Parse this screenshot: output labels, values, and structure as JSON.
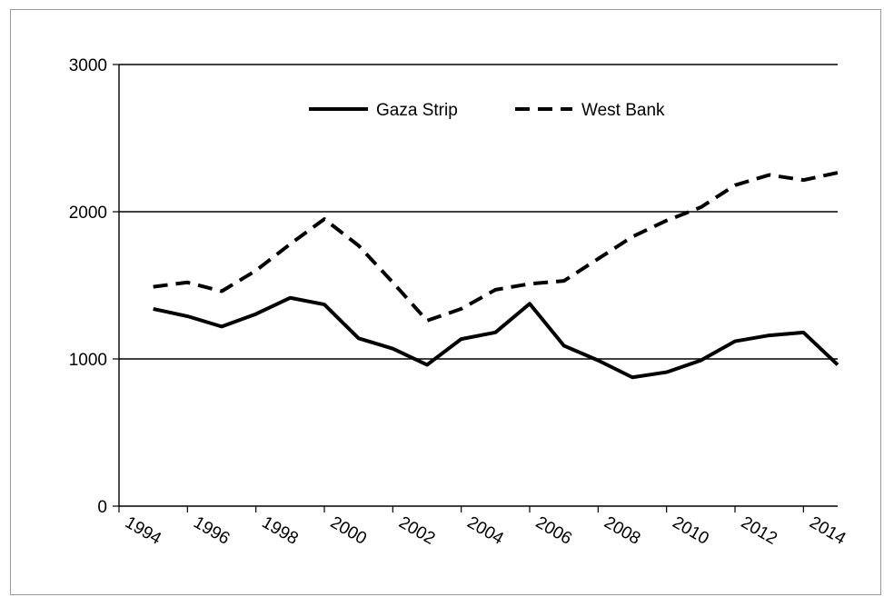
{
  "chart_data": {
    "type": "line",
    "title": "",
    "xlabel": "",
    "ylabel": "",
    "ylim": [
      0,
      3000
    ],
    "yticks": [
      "0",
      "1000",
      "2000",
      "3000"
    ],
    "xticks": [
      "1994",
      "1996",
      "1998",
      "2000",
      "2002",
      "2004",
      "2006",
      "2008",
      "2010",
      "2012",
      "2014"
    ],
    "grid": "horizontal",
    "legend_position": "top-center",
    "x": [
      1994,
      1995,
      1996,
      1997,
      1998,
      1999,
      2000,
      2001,
      2002,
      2003,
      2004,
      2005,
      2006,
      2007,
      2008,
      2009,
      2010,
      2011,
      2012,
      2013,
      2014
    ],
    "series": [
      {
        "name": "Gaza Strip",
        "style": "solid",
        "color": "#000000",
        "values": [
          1340,
          1290,
          1220,
          1305,
          1415,
          1370,
          1140,
          1070,
          960,
          1135,
          1180,
          1375,
          1090,
          990,
          875,
          910,
          990,
          1120,
          1160,
          1180,
          960
        ]
      },
      {
        "name": "West Bank",
        "style": "dashed",
        "color": "#000000",
        "values": [
          1490,
          1520,
          1460,
          1600,
          1780,
          1950,
          1770,
          1520,
          1260,
          1340,
          1470,
          1510,
          1530,
          1680,
          1830,
          1940,
          2030,
          2180,
          2250,
          2215,
          2265
        ]
      }
    ]
  }
}
